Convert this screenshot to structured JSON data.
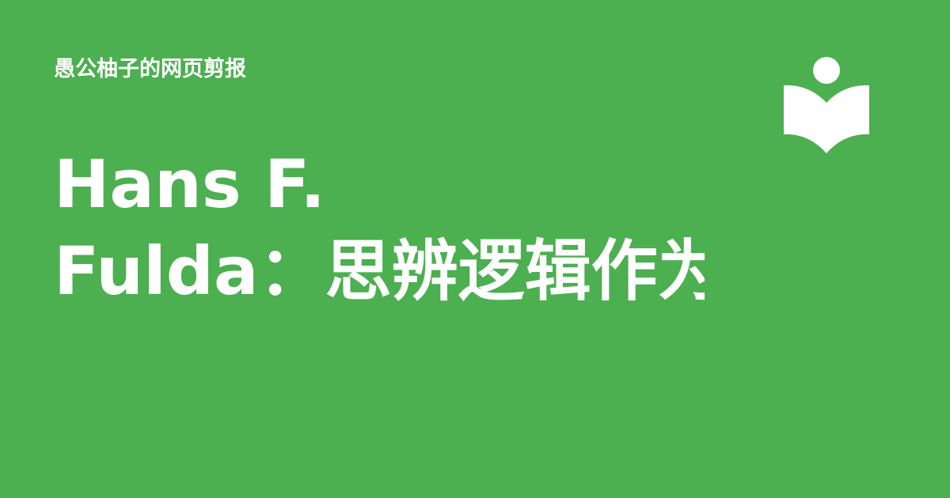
{
  "header": {
    "site_name": "愚公柚子的网页剪报",
    "logo_icon": "reader-book-icon"
  },
  "article": {
    "title_line_1": "Hans F.",
    "title_line_2": "Fulda：思辨逻辑作为"
  },
  "colors": {
    "background": "#4caf50",
    "text": "#ffffff"
  }
}
